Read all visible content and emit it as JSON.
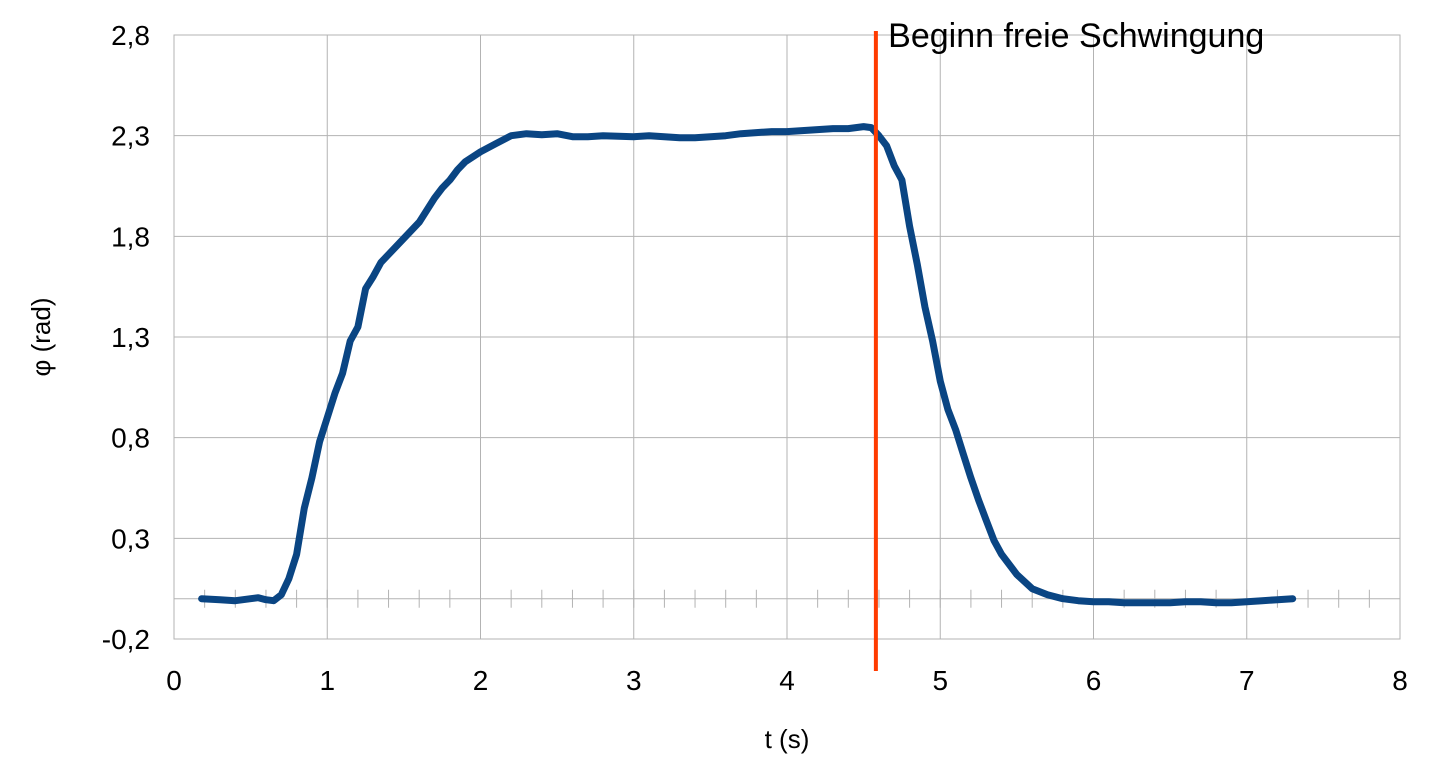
{
  "chart_data": {
    "type": "line",
    "xlabel": "t (s)",
    "ylabel": "φ (rad)",
    "xlim": [
      0,
      8
    ],
    "ylim": [
      -0.2,
      2.8
    ],
    "x_ticks": [
      0,
      1,
      2,
      3,
      4,
      5,
      6,
      7,
      8
    ],
    "x_tick_labels": [
      "0",
      "1",
      "2",
      "3",
      "4",
      "5",
      "6",
      "7",
      "8"
    ],
    "y_ticks": [
      -0.2,
      0.3,
      0.8,
      1.3,
      1.8,
      2.3,
      2.8
    ],
    "y_tick_labels": [
      "-0,2",
      "0,3",
      "0,8",
      "1,3",
      "1,8",
      "2,3",
      "2,8"
    ],
    "grid": true,
    "zero_line_minor_tick_step": 0.2,
    "series": [
      {
        "color": "#0a4583",
        "x": [
          0.18,
          0.3,
          0.4,
          0.5,
          0.55,
          0.6,
          0.65,
          0.7,
          0.75,
          0.8,
          0.85,
          0.9,
          0.95,
          1.0,
          1.05,
          1.1,
          1.15,
          1.2,
          1.25,
          1.3,
          1.35,
          1.4,
          1.5,
          1.6,
          1.7,
          1.75,
          1.8,
          1.85,
          1.9,
          2.0,
          2.1,
          2.2,
          2.3,
          2.4,
          2.5,
          2.6,
          2.7,
          2.8,
          3.0,
          3.1,
          3.2,
          3.3,
          3.4,
          3.5,
          3.6,
          3.7,
          3.8,
          3.9,
          4.0,
          4.1,
          4.2,
          4.3,
          4.4,
          4.5,
          4.55,
          4.6,
          4.65,
          4.7,
          4.75,
          4.8,
          4.85,
          4.9,
          4.95,
          5.0,
          5.05,
          5.1,
          5.15,
          5.2,
          5.25,
          5.3,
          5.35,
          5.4,
          5.5,
          5.6,
          5.7,
          5.8,
          5.9,
          6.0,
          6.1,
          6.2,
          6.3,
          6.4,
          6.5,
          6.6,
          6.7,
          6.8,
          6.9,
          7.0,
          7.1,
          7.2,
          7.3
        ],
        "y": [
          0.0,
          -0.005,
          -0.01,
          0.0,
          0.005,
          -0.005,
          -0.01,
          0.02,
          0.1,
          0.22,
          0.45,
          0.6,
          0.78,
          0.9,
          1.02,
          1.12,
          1.28,
          1.35,
          1.54,
          1.6,
          1.67,
          1.71,
          1.79,
          1.87,
          1.99,
          2.04,
          2.08,
          2.13,
          2.17,
          2.22,
          2.26,
          2.3,
          2.31,
          2.305,
          2.31,
          2.295,
          2.295,
          2.3,
          2.295,
          2.3,
          2.295,
          2.29,
          2.29,
          2.295,
          2.3,
          2.31,
          2.315,
          2.32,
          2.32,
          2.325,
          2.33,
          2.335,
          2.335,
          2.345,
          2.34,
          2.3,
          2.25,
          2.15,
          2.08,
          1.85,
          1.66,
          1.45,
          1.28,
          1.08,
          0.94,
          0.84,
          0.72,
          0.6,
          0.49,
          0.39,
          0.29,
          0.22,
          0.12,
          0.05,
          0.02,
          0.0,
          -0.01,
          -0.015,
          -0.015,
          -0.02,
          -0.02,
          -0.02,
          -0.02,
          -0.015,
          -0.015,
          -0.02,
          -0.02,
          -0.015,
          -0.01,
          -0.005,
          0.0
        ]
      }
    ],
    "vertical_marker": {
      "x": 4.58,
      "color": "#ff3b00"
    },
    "annotation": {
      "text": "Beginn freie Schwingung",
      "x": 4.66,
      "y": 2.74
    }
  }
}
